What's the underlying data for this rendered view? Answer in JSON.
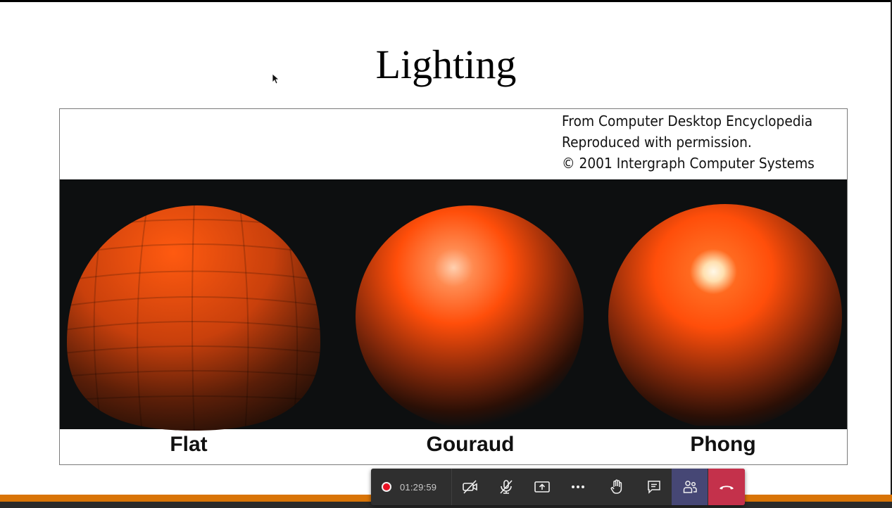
{
  "slide": {
    "title": "Lighting"
  },
  "figure": {
    "credit_lines": [
      "From Computer Desktop Encyclopedia",
      "Reproduced with permission.",
      "© 2001 Intergraph Computer Systems"
    ],
    "labels": {
      "flat": "Flat",
      "gouraud": "Gouraud",
      "phong": "Phong"
    },
    "sphere_color": "#ff4e0a",
    "background_color": "#0d0f10"
  },
  "call_toolbar": {
    "timer": "01:29:59",
    "recording": true,
    "buttons": [
      {
        "name": "camera-off-icon"
      },
      {
        "name": "microphone-off-icon"
      },
      {
        "name": "share-screen-icon"
      },
      {
        "name": "more-options-icon"
      },
      {
        "name": "raise-hand-icon"
      },
      {
        "name": "chat-icon"
      },
      {
        "name": "participants-icon"
      },
      {
        "name": "hang-up-icon"
      }
    ],
    "colors": {
      "bar": "#2f2f2f",
      "participants_active": "#464775",
      "hang_up": "#c4314b",
      "record": "#e81123"
    }
  },
  "accent": {
    "strip": "#d97406"
  }
}
